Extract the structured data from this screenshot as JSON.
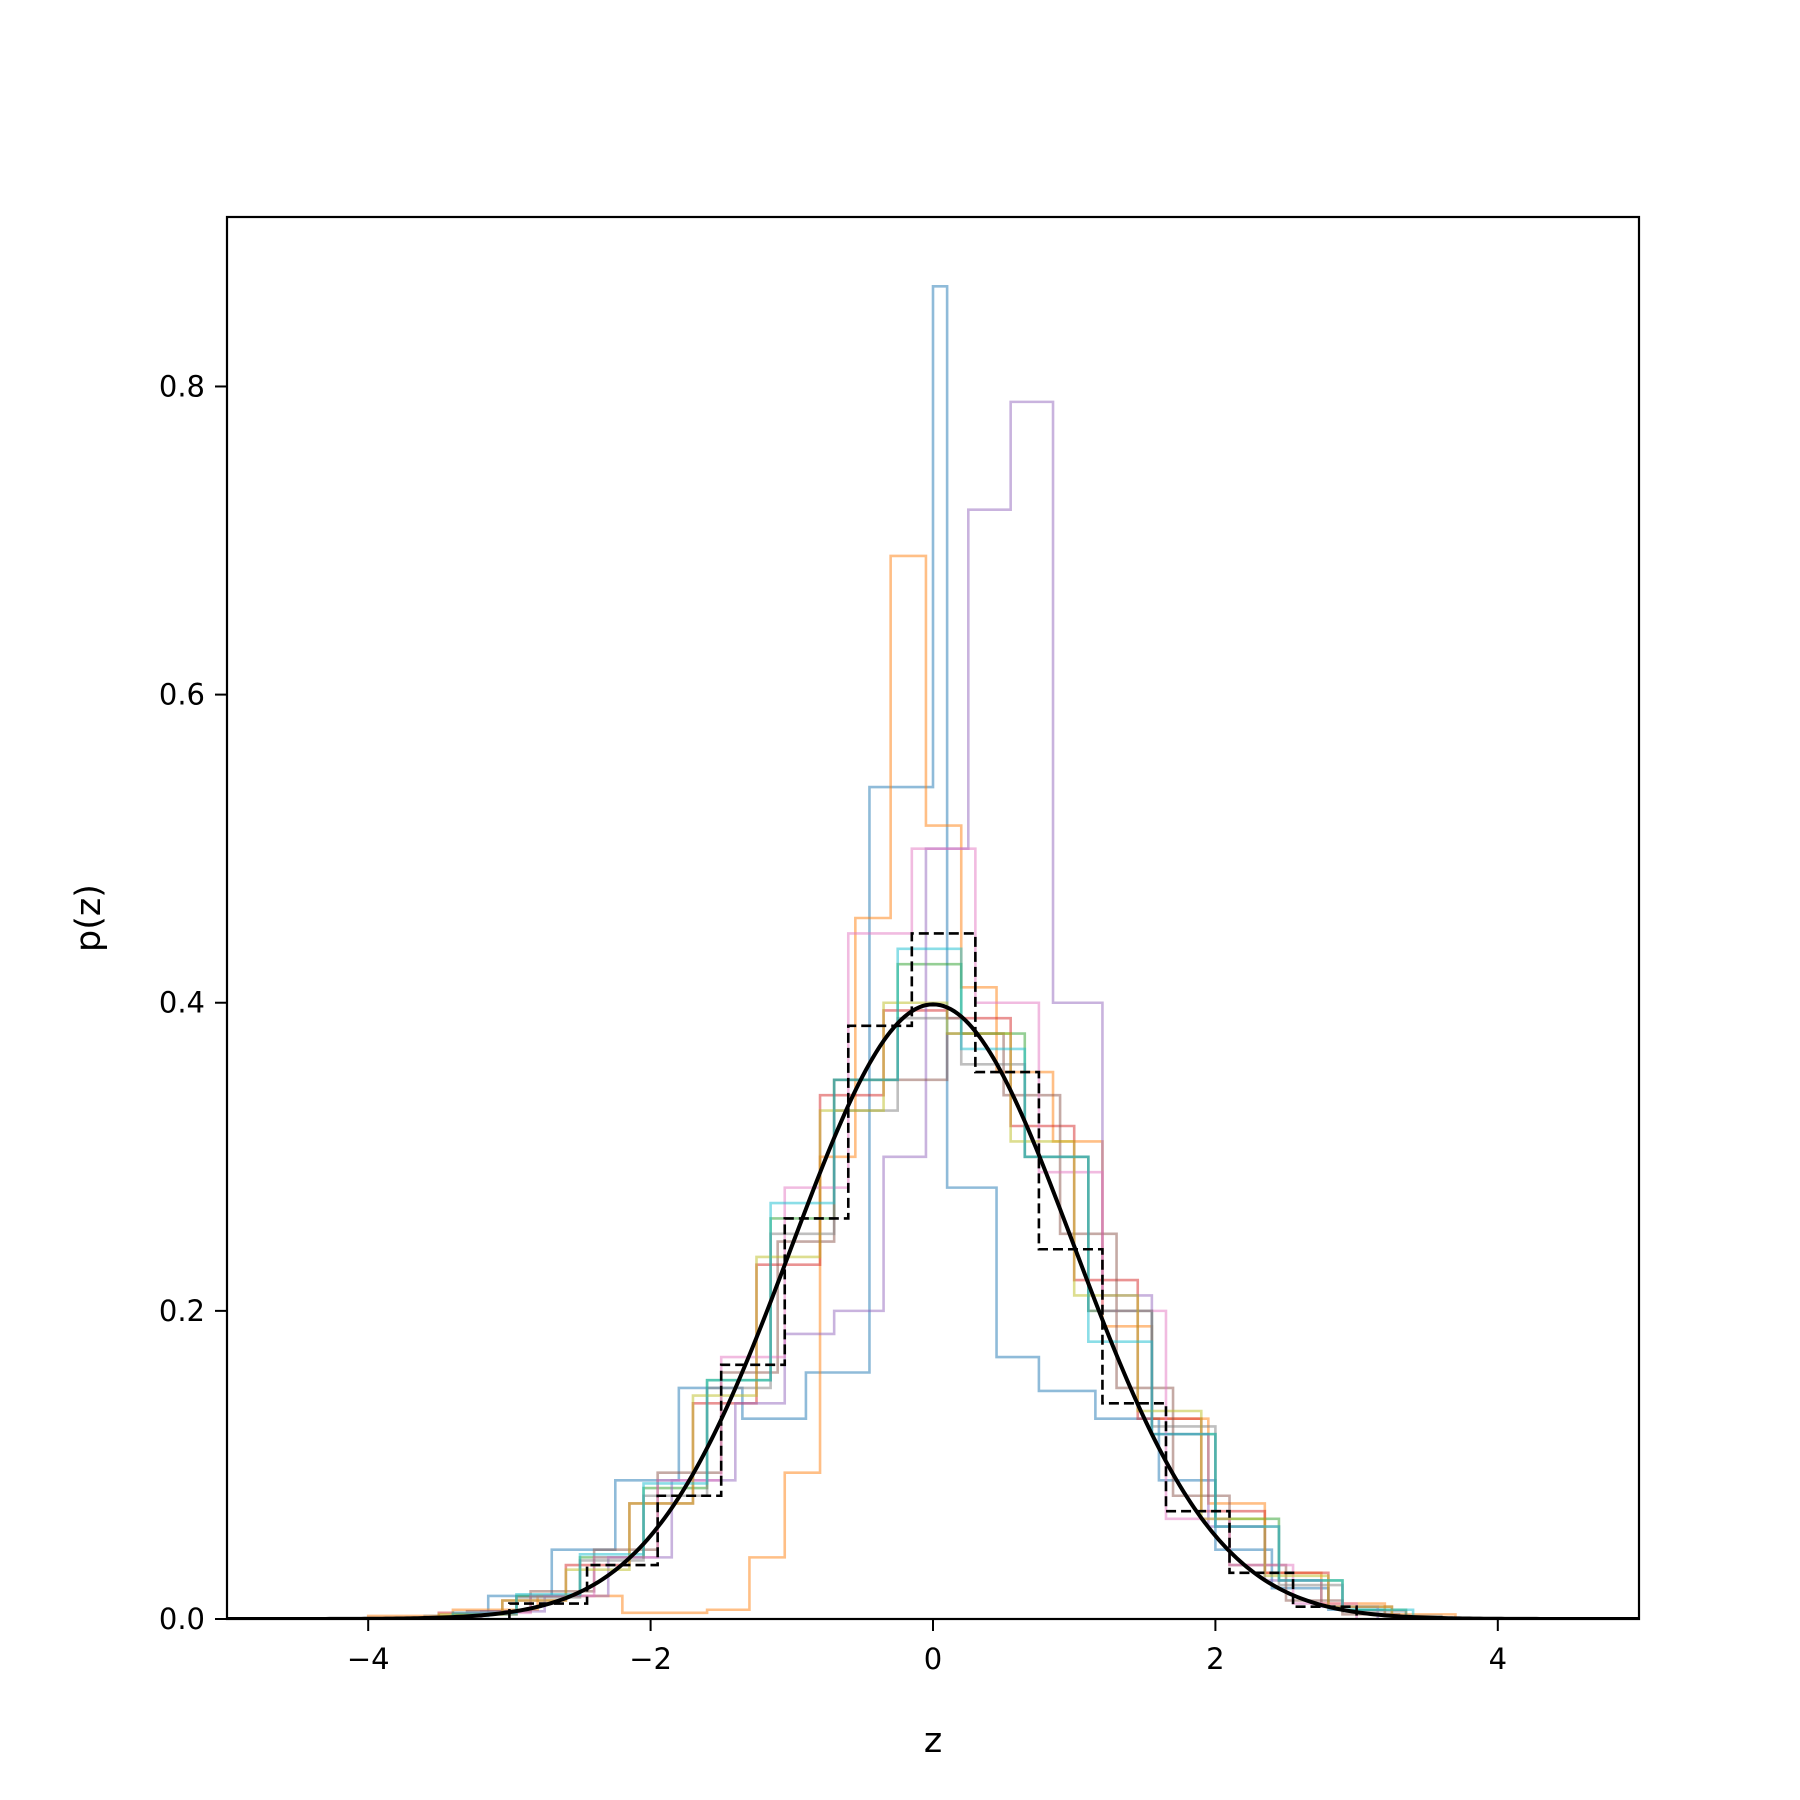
{
  "chart_data": {
    "type": "histogram",
    "xlabel": "z",
    "ylabel": "p(z)",
    "xlim": [
      -5,
      5
    ],
    "ylim": [
      0,
      0.91
    ],
    "xticks": [
      -4,
      -2,
      0,
      2,
      4
    ],
    "xtick_labels": [
      "−4",
      "−2",
      "0",
      "2",
      "4"
    ],
    "yticks": [
      0.0,
      0.2,
      0.4,
      0.6,
      0.8
    ],
    "ytick_labels": [
      "0.0",
      "0.2",
      "0.4",
      "0.6",
      "0.8"
    ],
    "grid": false,
    "legend": "none",
    "series": [
      {
        "style": "step",
        "color": "#1f77b4",
        "opacity": 0.5,
        "edges": [
          -3.6,
          -3.15,
          -2.7,
          -2.25,
          -1.8,
          -1.35,
          -0.9,
          -0.45,
          0.0,
          0.1,
          0.45,
          0.75,
          1.15,
          1.6,
          2.0,
          2.4,
          2.8,
          3.2,
          3.6
        ],
        "heights": [
          0.002,
          0.015,
          0.045,
          0.09,
          0.15,
          0.13,
          0.16,
          0.54,
          0.865,
          0.28,
          0.17,
          0.148,
          0.13,
          0.09,
          0.045,
          0.02,
          0.006,
          0.002
        ]
      },
      {
        "style": "step",
        "color": "#ff7f0e",
        "opacity": 0.5,
        "edges": [
          -4.0,
          -3.4,
          -2.8,
          -2.2,
          -1.6,
          -1.3,
          -1.05,
          -0.8,
          -0.55,
          -0.3,
          -0.05,
          0.2,
          0.45,
          0.85,
          1.2,
          1.55,
          1.95,
          2.35,
          2.75,
          3.2,
          3.7
        ],
        "heights": [
          0.002,
          0.006,
          0.015,
          0.004,
          0.006,
          0.04,
          0.095,
          0.3,
          0.455,
          0.69,
          0.515,
          0.41,
          0.355,
          0.31,
          0.19,
          0.13,
          0.075,
          0.03,
          0.01,
          0.003
        ]
      },
      {
        "style": "step",
        "color": "#2ca02c",
        "opacity": 0.5,
        "edges": [
          -3.4,
          -2.95,
          -2.5,
          -2.05,
          -1.6,
          -1.15,
          -0.7,
          -0.25,
          0.2,
          0.65,
          1.1,
          1.55,
          2.0,
          2.45,
          2.9,
          3.35
        ],
        "heights": [
          0.003,
          0.015,
          0.04,
          0.085,
          0.155,
          0.26,
          0.35,
          0.425,
          0.38,
          0.3,
          0.2,
          0.12,
          0.065,
          0.025,
          0.006
        ]
      },
      {
        "style": "step",
        "color": "#d62728",
        "opacity": 0.5,
        "edges": [
          -3.5,
          -3.05,
          -2.6,
          -2.15,
          -1.7,
          -1.25,
          -0.8,
          -0.35,
          0.1,
          0.55,
          1.0,
          1.45,
          1.9,
          2.35,
          2.8,
          3.25
        ],
        "heights": [
          0.004,
          0.012,
          0.035,
          0.075,
          0.14,
          0.23,
          0.34,
          0.395,
          0.39,
          0.32,
          0.22,
          0.13,
          0.07,
          0.03,
          0.008
        ]
      },
      {
        "style": "step",
        "color": "#9467bd",
        "opacity": 0.5,
        "edges": [
          -3.2,
          -2.75,
          -2.3,
          -1.85,
          -1.4,
          -1.05,
          -0.7,
          -0.35,
          -0.05,
          0.25,
          0.55,
          0.85,
          1.2,
          1.55,
          1.95,
          2.35,
          2.75,
          3.15
        ],
        "heights": [
          0.005,
          0.015,
          0.04,
          0.09,
          0.14,
          0.185,
          0.2,
          0.3,
          0.5,
          0.72,
          0.79,
          0.4,
          0.21,
          0.12,
          0.06,
          0.025,
          0.008
        ]
      },
      {
        "style": "step",
        "color": "#8c564b",
        "opacity": 0.5,
        "edges": [
          -3.3,
          -2.85,
          -2.4,
          -1.95,
          -1.5,
          -1.1,
          -0.7,
          -0.3,
          0.1,
          0.5,
          0.9,
          1.3,
          1.7,
          2.1,
          2.5,
          2.9,
          3.3
        ],
        "heights": [
          0.005,
          0.018,
          0.045,
          0.095,
          0.16,
          0.245,
          0.35,
          0.35,
          0.38,
          0.34,
          0.25,
          0.15,
          0.08,
          0.035,
          0.012,
          0.003
        ]
      },
      {
        "style": "step",
        "color": "#e377c2",
        "opacity": 0.5,
        "edges": [
          -3.3,
          -2.85,
          -2.4,
          -1.95,
          -1.5,
          -1.05,
          -0.6,
          -0.15,
          0.3,
          0.75,
          1.2,
          1.65,
          2.1,
          2.55,
          3.0
        ],
        "heights": [
          0.004,
          0.015,
          0.04,
          0.09,
          0.17,
          0.28,
          0.445,
          0.5,
          0.4,
          0.29,
          0.2,
          0.065,
          0.035,
          0.01
        ]
      },
      {
        "style": "step",
        "color": "#7f7f7f",
        "opacity": 0.5,
        "edges": [
          -3.4,
          -2.95,
          -2.5,
          -2.05,
          -1.6,
          -1.15,
          -0.7,
          -0.25,
          0.2,
          0.65,
          1.1,
          1.55,
          2.0,
          2.45,
          2.9,
          3.35
        ],
        "heights": [
          0.003,
          0.014,
          0.038,
          0.08,
          0.15,
          0.25,
          0.33,
          0.39,
          0.36,
          0.3,
          0.2,
          0.125,
          0.06,
          0.022,
          0.005
        ]
      },
      {
        "style": "step",
        "color": "#bcbd22",
        "opacity": 0.5,
        "edges": [
          -3.5,
          -3.05,
          -2.6,
          -2.15,
          -1.7,
          -1.25,
          -0.8,
          -0.35,
          0.1,
          0.55,
          1.0,
          1.45,
          1.9,
          2.35,
          2.8,
          3.25
        ],
        "heights": [
          0.003,
          0.012,
          0.032,
          0.075,
          0.145,
          0.235,
          0.33,
          0.4,
          0.38,
          0.31,
          0.21,
          0.135,
          0.065,
          0.028,
          0.008
        ]
      },
      {
        "style": "step",
        "color": "#17becf",
        "opacity": 0.5,
        "edges": [
          -3.4,
          -2.95,
          -2.5,
          -2.05,
          -1.6,
          -1.15,
          -0.7,
          -0.25,
          0.2,
          0.65,
          1.1,
          1.55,
          2.0,
          2.45,
          2.9,
          3.4
        ],
        "heights": [
          0.004,
          0.016,
          0.042,
          0.088,
          0.155,
          0.27,
          0.35,
          0.435,
          0.37,
          0.3,
          0.18,
          0.12,
          0.06,
          0.025,
          0.006
        ]
      },
      {
        "style": "dashed-step",
        "color": "#000000",
        "opacity": 1.0,
        "edges": [
          -3.0,
          -2.45,
          -1.95,
          -1.5,
          -1.05,
          -0.6,
          -0.15,
          0.3,
          0.75,
          1.2,
          1.65,
          2.1,
          2.55,
          3.0
        ],
        "heights": [
          0.01,
          0.035,
          0.08,
          0.165,
          0.26,
          0.385,
          0.445,
          0.355,
          0.24,
          0.14,
          0.07,
          0.03,
          0.008
        ]
      },
      {
        "style": "curve",
        "color": "#000000",
        "opacity": 1.0,
        "function": "standard normal pdf",
        "x_range": [
          -5,
          5
        ]
      }
    ]
  }
}
